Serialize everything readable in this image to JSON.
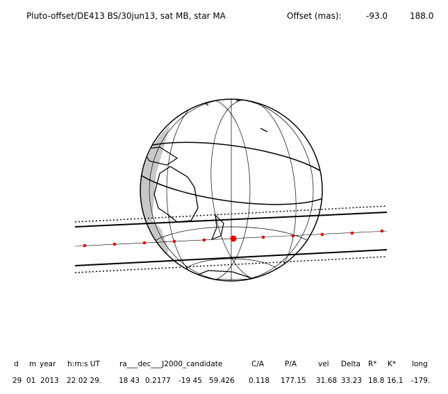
{
  "header": {
    "title": "Pluto-offset/DE413 BS/30jun13, sat MB, star MA",
    "offset_label": "Offset (mas):",
    "offset_x": "-93.0",
    "offset_y": "188.0"
  },
  "table": {
    "columns": [
      "d",
      "m",
      "year",
      "h:m:s UT",
      "ra___dec___J2000_candidate",
      "C/A",
      "P/A",
      "vel",
      "Delta",
      "R*",
      "K*",
      "long"
    ],
    "row": [
      "29",
      "01",
      "2013",
      "22 02 29.",
      "18 43",
      "0.2177",
      "-19 45",
      "59.426",
      "0.118",
      "177.15",
      "31.68",
      "33.23",
      "18.8",
      "16.1",
      "-179."
    ]
  }
}
